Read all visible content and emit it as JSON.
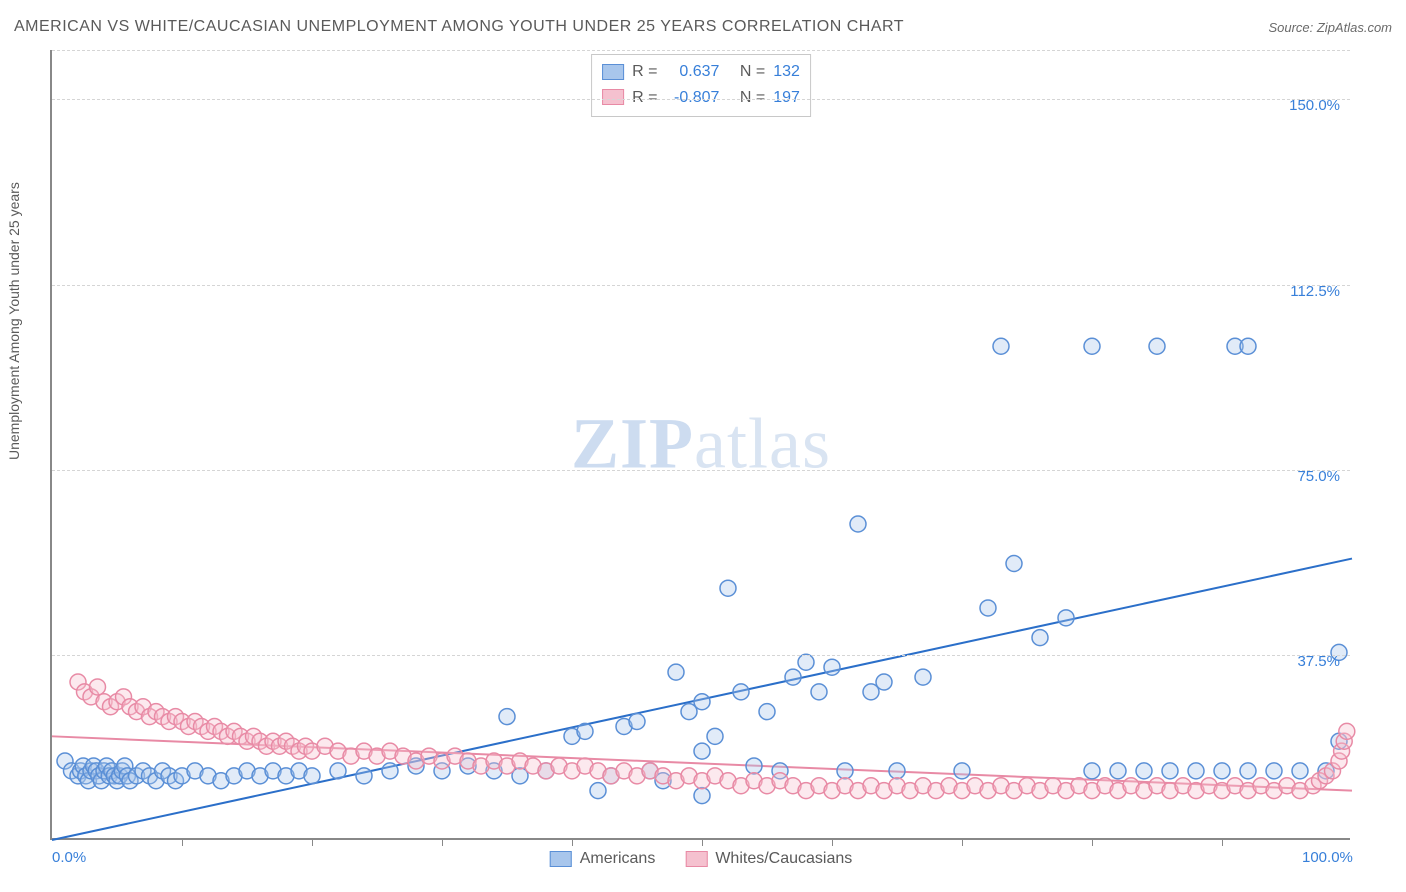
{
  "title": "AMERICAN VS WHITE/CAUCASIAN UNEMPLOYMENT AMONG YOUTH UNDER 25 YEARS CORRELATION CHART",
  "source": "Source: ZipAtlas.com",
  "y_axis_label": "Unemployment Among Youth under 25 years",
  "watermark_zip": "ZIP",
  "watermark_atlas": "atlas",
  "chart": {
    "type": "scatter-with-regression",
    "background_color": "#ffffff",
    "grid_color": "#d5d5d5",
    "axis_color": "#888888",
    "xlim": [
      0,
      100
    ],
    "ylim": [
      0,
      160
    ],
    "x_ticks": [
      0,
      100
    ],
    "x_tick_labels": [
      "0.0%",
      "100.0%"
    ],
    "x_minor_ticks": [
      10,
      20,
      30,
      40,
      50,
      60,
      70,
      80,
      90
    ],
    "y_ticks": [
      37.5,
      75.0,
      112.5,
      150.0
    ],
    "y_tick_labels": [
      "37.5%",
      "75.0%",
      "112.5%",
      "150.0%"
    ],
    "marker_radius": 8,
    "marker_stroke_width": 1.5,
    "marker_fill_opacity": 0.35,
    "line_width": 2
  },
  "series": [
    {
      "name": "Americans",
      "color_fill": "#a8c6ec",
      "color_stroke": "#5a8fd6",
      "line_color": "#2b6fc9",
      "R": "0.637",
      "N": "132",
      "regression": {
        "x1": 0,
        "y1": 0,
        "x2": 100,
        "y2": 57
      },
      "points": [
        [
          1,
          16
        ],
        [
          1.5,
          14
        ],
        [
          2,
          13
        ],
        [
          2.2,
          14
        ],
        [
          2.4,
          15
        ],
        [
          2.6,
          13
        ],
        [
          2.8,
          12
        ],
        [
          3,
          14
        ],
        [
          3.2,
          15
        ],
        [
          3.4,
          14
        ],
        [
          3.6,
          13
        ],
        [
          3.8,
          12
        ],
        [
          4,
          14
        ],
        [
          4.2,
          15
        ],
        [
          4.4,
          13
        ],
        [
          4.6,
          14
        ],
        [
          4.8,
          13
        ],
        [
          5,
          12
        ],
        [
          5.2,
          13
        ],
        [
          5.4,
          14
        ],
        [
          5.6,
          15
        ],
        [
          5.8,
          13
        ],
        [
          6,
          12
        ],
        [
          6.5,
          13
        ],
        [
          7,
          14
        ],
        [
          7.5,
          13
        ],
        [
          8,
          12
        ],
        [
          8.5,
          14
        ],
        [
          9,
          13
        ],
        [
          9.5,
          12
        ],
        [
          10,
          13
        ],
        [
          11,
          14
        ],
        [
          12,
          13
        ],
        [
          13,
          12
        ],
        [
          14,
          13
        ],
        [
          15,
          14
        ],
        [
          16,
          13
        ],
        [
          17,
          14
        ],
        [
          18,
          13
        ],
        [
          19,
          14
        ],
        [
          20,
          13
        ],
        [
          22,
          14
        ],
        [
          24,
          13
        ],
        [
          26,
          14
        ],
        [
          28,
          15
        ],
        [
          30,
          14
        ],
        [
          32,
          15
        ],
        [
          34,
          14
        ],
        [
          35,
          25
        ],
        [
          36,
          13
        ],
        [
          38,
          14
        ],
        [
          40,
          21
        ],
        [
          41,
          22
        ],
        [
          42,
          10
        ],
        [
          43,
          13
        ],
        [
          44,
          23
        ],
        [
          45,
          24
        ],
        [
          46,
          14
        ],
        [
          47,
          12
        ],
        [
          48,
          34
        ],
        [
          49,
          26
        ],
        [
          50,
          28
        ],
        [
          50,
          18
        ],
        [
          50,
          9
        ],
        [
          51,
          21
        ],
        [
          52,
          51
        ],
        [
          53,
          30
        ],
        [
          54,
          15
        ],
        [
          55,
          26
        ],
        [
          56,
          14
        ],
        [
          57,
          33
        ],
        [
          58,
          36
        ],
        [
          59,
          30
        ],
        [
          60,
          35
        ],
        [
          61,
          14
        ],
        [
          62,
          64
        ],
        [
          63,
          30
        ],
        [
          64,
          32
        ],
        [
          65,
          14
        ],
        [
          67,
          33
        ],
        [
          70,
          14
        ],
        [
          72,
          47
        ],
        [
          74,
          56
        ],
        [
          76,
          41
        ],
        [
          78,
          45
        ],
        [
          80,
          14
        ],
        [
          82,
          14
        ],
        [
          84,
          14
        ],
        [
          86,
          14
        ],
        [
          88,
          14
        ],
        [
          90,
          14
        ],
        [
          92,
          14
        ],
        [
          94,
          14
        ],
        [
          96,
          14
        ],
        [
          98,
          14
        ],
        [
          99,
          20
        ],
        [
          99,
          38
        ],
        [
          73,
          100
        ],
        [
          80,
          100
        ],
        [
          85,
          100
        ],
        [
          91,
          100
        ],
        [
          92,
          100
        ]
      ]
    },
    {
      "name": "Whites/Caucasians",
      "color_fill": "#f5c1cf",
      "color_stroke": "#e88aa5",
      "line_color": "#e88aa5",
      "R": "-0.807",
      "N": "197",
      "regression": {
        "x1": 0,
        "y1": 21,
        "x2": 100,
        "y2": 10
      },
      "points": [
        [
          2,
          32
        ],
        [
          2.5,
          30
        ],
        [
          3,
          29
        ],
        [
          3.5,
          31
        ],
        [
          4,
          28
        ],
        [
          4.5,
          27
        ],
        [
          5,
          28
        ],
        [
          5.5,
          29
        ],
        [
          6,
          27
        ],
        [
          6.5,
          26
        ],
        [
          7,
          27
        ],
        [
          7.5,
          25
        ],
        [
          8,
          26
        ],
        [
          8.5,
          25
        ],
        [
          9,
          24
        ],
        [
          9.5,
          25
        ],
        [
          10,
          24
        ],
        [
          10.5,
          23
        ],
        [
          11,
          24
        ],
        [
          11.5,
          23
        ],
        [
          12,
          22
        ],
        [
          12.5,
          23
        ],
        [
          13,
          22
        ],
        [
          13.5,
          21
        ],
        [
          14,
          22
        ],
        [
          14.5,
          21
        ],
        [
          15,
          20
        ],
        [
          15.5,
          21
        ],
        [
          16,
          20
        ],
        [
          16.5,
          19
        ],
        [
          17,
          20
        ],
        [
          17.5,
          19
        ],
        [
          18,
          20
        ],
        [
          18.5,
          19
        ],
        [
          19,
          18
        ],
        [
          19.5,
          19
        ],
        [
          20,
          18
        ],
        [
          21,
          19
        ],
        [
          22,
          18
        ],
        [
          23,
          17
        ],
        [
          24,
          18
        ],
        [
          25,
          17
        ],
        [
          26,
          18
        ],
        [
          27,
          17
        ],
        [
          28,
          16
        ],
        [
          29,
          17
        ],
        [
          30,
          16
        ],
        [
          31,
          17
        ],
        [
          32,
          16
        ],
        [
          33,
          15
        ],
        [
          34,
          16
        ],
        [
          35,
          15
        ],
        [
          36,
          16
        ],
        [
          37,
          15
        ],
        [
          38,
          14
        ],
        [
          39,
          15
        ],
        [
          40,
          14
        ],
        [
          41,
          15
        ],
        [
          42,
          14
        ],
        [
          43,
          13
        ],
        [
          44,
          14
        ],
        [
          45,
          13
        ],
        [
          46,
          14
        ],
        [
          47,
          13
        ],
        [
          48,
          12
        ],
        [
          49,
          13
        ],
        [
          50,
          12
        ],
        [
          51,
          13
        ],
        [
          52,
          12
        ],
        [
          53,
          11
        ],
        [
          54,
          12
        ],
        [
          55,
          11
        ],
        [
          56,
          12
        ],
        [
          57,
          11
        ],
        [
          58,
          10
        ],
        [
          59,
          11
        ],
        [
          60,
          10
        ],
        [
          61,
          11
        ],
        [
          62,
          10
        ],
        [
          63,
          11
        ],
        [
          64,
          10
        ],
        [
          65,
          11
        ],
        [
          66,
          10
        ],
        [
          67,
          11
        ],
        [
          68,
          10
        ],
        [
          69,
          11
        ],
        [
          70,
          10
        ],
        [
          71,
          11
        ],
        [
          72,
          10
        ],
        [
          73,
          11
        ],
        [
          74,
          10
        ],
        [
          75,
          11
        ],
        [
          76,
          10
        ],
        [
          77,
          11
        ],
        [
          78,
          10
        ],
        [
          79,
          11
        ],
        [
          80,
          10
        ],
        [
          81,
          11
        ],
        [
          82,
          10
        ],
        [
          83,
          11
        ],
        [
          84,
          10
        ],
        [
          85,
          11
        ],
        [
          86,
          10
        ],
        [
          87,
          11
        ],
        [
          88,
          10
        ],
        [
          89,
          11
        ],
        [
          90,
          10
        ],
        [
          91,
          11
        ],
        [
          92,
          10
        ],
        [
          93,
          11
        ],
        [
          94,
          10
        ],
        [
          95,
          11
        ],
        [
          96,
          10
        ],
        [
          97,
          11
        ],
        [
          97.5,
          12
        ],
        [
          98,
          13
        ],
        [
          98.5,
          14
        ],
        [
          99,
          16
        ],
        [
          99.2,
          18
        ],
        [
          99.4,
          20
        ],
        [
          99.6,
          22
        ]
      ]
    }
  ],
  "legend": {
    "top": {
      "rows": [
        {
          "swatch_fill": "#a8c6ec",
          "swatch_stroke": "#5a8fd6",
          "R_label": "R =",
          "R": "0.637",
          "N_label": "N =",
          "N": "132"
        },
        {
          "swatch_fill": "#f5c1cf",
          "swatch_stroke": "#e88aa5",
          "R_label": "R =",
          "R": "-0.807",
          "N_label": "N =",
          "N": "197"
        }
      ]
    },
    "bottom": [
      {
        "swatch_fill": "#a8c6ec",
        "swatch_stroke": "#5a8fd6",
        "label": "Americans"
      },
      {
        "swatch_fill": "#f5c1cf",
        "swatch_stroke": "#e88aa5",
        "label": "Whites/Caucasians"
      }
    ]
  }
}
